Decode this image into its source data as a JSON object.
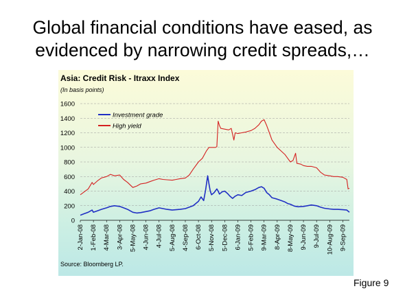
{
  "slide": {
    "title_line1": "Global financial conditions have eased, as",
    "title_line2": "evidenced by narrowing credit spreads,…",
    "figure_label": "Figure 9"
  },
  "chart": {
    "title": "Asia: Credit Risk - Itraxx Index",
    "subtitle": "(In basis points)",
    "source": "Source: Bloomberg LP."
  },
  "chart_data": {
    "type": "line",
    "x_tick_labels": [
      "2-Jan-08",
      "1-Feb-08",
      "4-Mar-08",
      "3-Apr-08",
      "5-May-08",
      "4-Jun-08",
      "4-Jul-08",
      "5-Aug-08",
      "4-Sep-08",
      "6-Oct-08",
      "5-Nov-08",
      "5-Dec-08",
      "6-Jan-09",
      "5-Feb-09",
      "9-Mar-09",
      "8-Apr-09",
      "8-May-09",
      "9-Jun-09",
      "9-Jul-09",
      "10-Aug-09",
      "9-Sep-09"
    ],
    "ylim": [
      0,
      1600
    ],
    "y_ticks": [
      0,
      200,
      400,
      600,
      800,
      1000,
      1200,
      1400,
      1600
    ],
    "grid": "horizontal dashed",
    "legend_position": "top-left",
    "x_index_max": 20.5,
    "series": [
      {
        "name": "Investment grade",
        "color": "#1f2fc4",
        "points": [
          [
            0,
            70
          ],
          [
            0.3,
            90
          ],
          [
            0.6,
            110
          ],
          [
            0.9,
            140
          ],
          [
            1,
            110
          ],
          [
            1.3,
            130
          ],
          [
            1.6,
            150
          ],
          [
            2,
            170
          ],
          [
            2.3,
            190
          ],
          [
            2.6,
            200
          ],
          [
            3,
            190
          ],
          [
            3.3,
            170
          ],
          [
            3.6,
            150
          ],
          [
            4,
            110
          ],
          [
            4.3,
            100
          ],
          [
            4.6,
            105
          ],
          [
            5,
            120
          ],
          [
            5.3,
            130
          ],
          [
            5.6,
            150
          ],
          [
            6,
            170
          ],
          [
            6.3,
            160
          ],
          [
            6.6,
            150
          ],
          [
            7,
            140
          ],
          [
            7.3,
            145
          ],
          [
            7.6,
            150
          ],
          [
            8,
            160
          ],
          [
            8.3,
            180
          ],
          [
            8.6,
            200
          ],
          [
            9,
            260
          ],
          [
            9.2,
            320
          ],
          [
            9.4,
            270
          ],
          [
            9.55,
            420
          ],
          [
            9.7,
            610
          ],
          [
            9.8,
            500
          ],
          [
            9.9,
            400
          ],
          [
            10,
            350
          ],
          [
            10.2,
            380
          ],
          [
            10.4,
            430
          ],
          [
            10.5,
            400
          ],
          [
            10.6,
            360
          ],
          [
            10.8,
            390
          ],
          [
            11,
            400
          ],
          [
            11.2,
            370
          ],
          [
            11.4,
            330
          ],
          [
            11.6,
            300
          ],
          [
            11.8,
            330
          ],
          [
            12,
            350
          ],
          [
            12.3,
            340
          ],
          [
            12.6,
            380
          ],
          [
            13,
            400
          ],
          [
            13.3,
            420
          ],
          [
            13.6,
            450
          ],
          [
            13.8,
            460
          ],
          [
            14,
            440
          ],
          [
            14.2,
            380
          ],
          [
            14.4,
            350
          ],
          [
            14.6,
            310
          ],
          [
            14.8,
            300
          ],
          [
            15,
            290
          ],
          [
            15.3,
            270
          ],
          [
            15.6,
            250
          ],
          [
            15.8,
            230
          ],
          [
            16,
            220
          ],
          [
            16.3,
            195
          ],
          [
            16.6,
            185
          ],
          [
            17,
            190
          ],
          [
            17.3,
            200
          ],
          [
            17.6,
            210
          ],
          [
            18,
            200
          ],
          [
            18.3,
            180
          ],
          [
            18.6,
            165
          ],
          [
            19,
            155
          ],
          [
            19.3,
            150
          ],
          [
            19.6,
            150
          ],
          [
            20,
            145
          ],
          [
            20.3,
            140
          ],
          [
            20.5,
            110
          ]
        ]
      },
      {
        "name": "High yield",
        "color": "#d42020",
        "points": [
          [
            0,
            350
          ],
          [
            0.3,
            390
          ],
          [
            0.6,
            430
          ],
          [
            0.9,
            520
          ],
          [
            1,
            490
          ],
          [
            1.3,
            540
          ],
          [
            1.6,
            580
          ],
          [
            2,
            600
          ],
          [
            2.3,
            630
          ],
          [
            2.6,
            610
          ],
          [
            3,
            620
          ],
          [
            3.3,
            560
          ],
          [
            3.6,
            520
          ],
          [
            4,
            450
          ],
          [
            4.3,
            470
          ],
          [
            4.6,
            500
          ],
          [
            5,
            510
          ],
          [
            5.3,
            530
          ],
          [
            5.6,
            550
          ],
          [
            6,
            570
          ],
          [
            6.3,
            560
          ],
          [
            6.6,
            555
          ],
          [
            7,
            550
          ],
          [
            7.3,
            560
          ],
          [
            7.6,
            570
          ],
          [
            8,
            580
          ],
          [
            8.3,
            620
          ],
          [
            8.6,
            700
          ],
          [
            9,
            800
          ],
          [
            9.3,
            850
          ],
          [
            9.6,
            950
          ],
          [
            9.8,
            1000
          ],
          [
            10,
            1000
          ],
          [
            10.3,
            1000
          ],
          [
            10.4,
            1010
          ],
          [
            10.5,
            1360
          ],
          [
            10.6,
            1300
          ],
          [
            10.7,
            1260
          ],
          [
            11,
            1250
          ],
          [
            11.3,
            1240
          ],
          [
            11.5,
            1260
          ],
          [
            11.7,
            1100
          ],
          [
            11.8,
            1200
          ],
          [
            12,
            1190
          ],
          [
            12.3,
            1200
          ],
          [
            12.6,
            1210
          ],
          [
            13,
            1230
          ],
          [
            13.3,
            1260
          ],
          [
            13.6,
            1310
          ],
          [
            13.8,
            1360
          ],
          [
            14,
            1380
          ],
          [
            14.2,
            1300
          ],
          [
            14.4,
            1200
          ],
          [
            14.6,
            1100
          ],
          [
            14.8,
            1050
          ],
          [
            15,
            1000
          ],
          [
            15.3,
            950
          ],
          [
            15.6,
            900
          ],
          [
            15.8,
            850
          ],
          [
            16,
            800
          ],
          [
            16.2,
            820
          ],
          [
            16.4,
            920
          ],
          [
            16.5,
            780
          ],
          [
            16.8,
            770
          ],
          [
            17,
            750
          ],
          [
            17.3,
            740
          ],
          [
            17.6,
            740
          ],
          [
            18,
            720
          ],
          [
            18.3,
            660
          ],
          [
            18.6,
            620
          ],
          [
            19,
            610
          ],
          [
            19.3,
            600
          ],
          [
            19.6,
            600
          ],
          [
            20,
            590
          ],
          [
            20.3,
            560
          ],
          [
            20.4,
            430
          ],
          [
            20.5,
            440
          ]
        ]
      }
    ]
  }
}
